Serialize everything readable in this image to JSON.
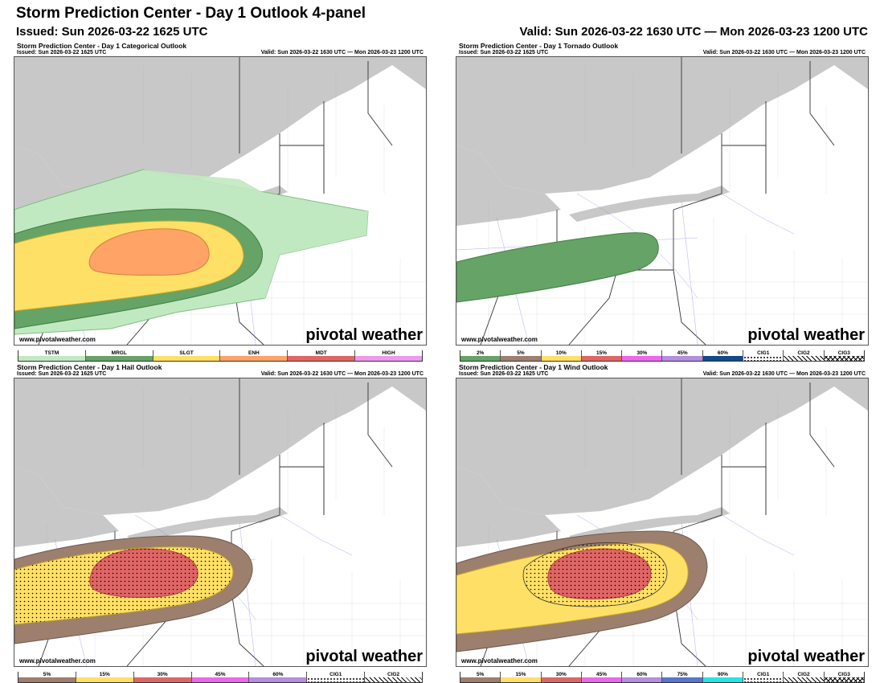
{
  "header": {
    "title": "Storm Prediction Center - Day 1 Outlook 4-panel",
    "issued": "Issued: Sun 2026-03-22 1625 UTC",
    "valid": "Valid: Sun 2026-03-22 1630 UTC — Mon 2026-03-23 1200 UTC"
  },
  "watermark": {
    "url": "www.pivotalweather.com",
    "logo": "pivotal weather"
  },
  "colors": {
    "land": "#ffffff",
    "water": "#c8c8c8",
    "borders": "#333333",
    "roads": "#8a8ae0"
  },
  "panels": [
    {
      "title": "Storm Prediction Center - Day 1 Categorical Outlook",
      "issued": "Issued: Sun 2026-03-22 1625 UTC",
      "valid": "Valid: Sun 2026-03-22 1630 UTC — Mon 2026-03-23 1200 UTC",
      "legend": [
        {
          "label": "TSTM",
          "color": "#c1e9c1"
        },
        {
          "label": "MRGL",
          "color": "#66a366"
        },
        {
          "label": "SLGT",
          "color": "#ffe066"
        },
        {
          "label": "ENH",
          "color": "#ffa366"
        },
        {
          "label": "MDT",
          "color": "#e06666"
        },
        {
          "label": "HIGH",
          "color": "#ee99ee"
        }
      ]
    },
    {
      "title": "Storm Prediction Center - Day 1 Tornado Outlook",
      "issued": "Issued: Sun 2026-03-22 1625 UTC",
      "valid": "Valid: Sun 2026-03-22 1630 UTC — Mon 2026-03-23 1200 UTC",
      "legend": [
        {
          "label": "2%",
          "color": "#66a366"
        },
        {
          "label": "5%",
          "color": "#9d7f6e"
        },
        {
          "label": "10%",
          "color": "#ffe066"
        },
        {
          "label": "15%",
          "color": "#e06666"
        },
        {
          "label": "30%",
          "color": "#ee66ee"
        },
        {
          "label": "45%",
          "color": "#b48ee0"
        },
        {
          "label": "60%",
          "color": "#124a8a"
        },
        {
          "label": "CIG1",
          "color": "dots"
        },
        {
          "label": "CIG2",
          "color": "hatch"
        },
        {
          "label": "CIG3",
          "color": "cross"
        }
      ]
    },
    {
      "title": "Storm Prediction Center - Day 1 Hail Outlook",
      "issued": "Issued: Sun 2026-03-22 1625 UTC",
      "valid": "Valid: Sun 2026-03-22 1630 UTC — Mon 2026-03-23 1200 UTC",
      "legend": [
        {
          "label": "5%",
          "color": "#9d7f6e"
        },
        {
          "label": "15%",
          "color": "#ffe066"
        },
        {
          "label": "30%",
          "color": "#e06666"
        },
        {
          "label": "45%",
          "color": "#ee66ee"
        },
        {
          "label": "60%",
          "color": "#b48ee0"
        },
        {
          "label": "CIG1",
          "color": "dots"
        },
        {
          "label": "CIG2",
          "color": "hatch"
        }
      ]
    },
    {
      "title": "Storm Prediction Center - Day 1 Wind Outlook",
      "issued": "Issued: Sun 2026-03-22 1625 UTC",
      "valid": "Valid: Sun 2026-03-22 1630 UTC — Mon 2026-03-23 1200 UTC",
      "legend": [
        {
          "label": "5%",
          "color": "#9d7f6e"
        },
        {
          "label": "15%",
          "color": "#ffe066"
        },
        {
          "label": "30%",
          "color": "#e06666"
        },
        {
          "label": "45%",
          "color": "#ee66ee"
        },
        {
          "label": "60%",
          "color": "#b48ee0"
        },
        {
          "label": "75%",
          "color": "#5577cc"
        },
        {
          "label": "90%",
          "color": "#22e6e6"
        },
        {
          "label": "CIG1",
          "color": "dots"
        },
        {
          "label": "CIG2",
          "color": "hatch"
        },
        {
          "label": "CIG3",
          "color": "cross"
        }
      ]
    }
  ]
}
